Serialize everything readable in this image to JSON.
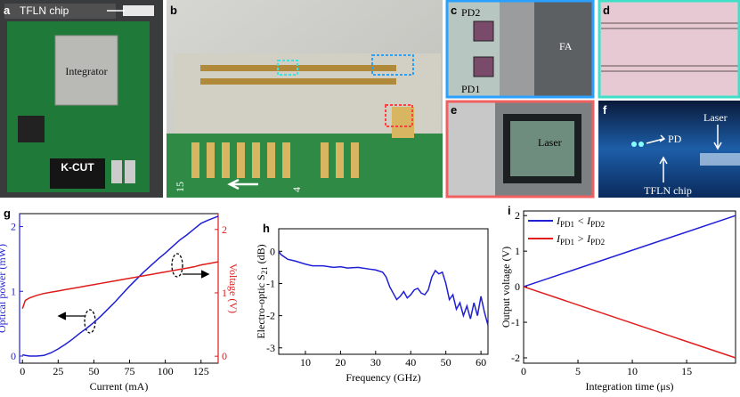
{
  "panels": {
    "a": {
      "label": "a",
      "chip": "TFLN chip",
      "integrator": "Integrator",
      "module": "K-CUT"
    },
    "b": {
      "label": "b",
      "pcb_left": "15",
      "pcb_right": "4"
    },
    "c": {
      "label": "c",
      "pd2": "PD2",
      "pd1": "PD1",
      "fa": "FA"
    },
    "d": {
      "label": "d"
    },
    "e": {
      "label": "e",
      "laser": "Laser"
    },
    "f": {
      "label": "f",
      "pd": "PD",
      "laser": "Laser",
      "chip": "TFLN chip"
    }
  },
  "chart_data": [
    {
      "type": "line",
      "panel_label": "g",
      "xlabel": "Current (mA)",
      "ylabel": "Optical power (mW)",
      "y2label": "Voltage (V)",
      "x": [
        0,
        2,
        5,
        10,
        15,
        20,
        25,
        30,
        35,
        40,
        45,
        50,
        55,
        60,
        65,
        70,
        75,
        80,
        85,
        90,
        95,
        100,
        105,
        110,
        115,
        120,
        125,
        130,
        137
      ],
      "series": [
        {
          "name": "Optical power",
          "color": "#1f1fd6",
          "values": [
            0.02,
            0.01,
            0.0,
            0.0,
            0.01,
            0.05,
            0.11,
            0.18,
            0.26,
            0.35,
            0.43,
            0.52,
            0.62,
            0.73,
            0.84,
            0.96,
            1.08,
            1.19,
            1.3,
            1.4,
            1.5,
            1.59,
            1.69,
            1.79,
            1.87,
            1.96,
            2.05,
            2.1,
            2.16
          ]
        },
        {
          "name": "Voltage",
          "color": "#e01b1b",
          "axis": "y2",
          "values": [
            0.75,
            0.88,
            0.92,
            0.96,
            0.99,
            1.01,
            1.03,
            1.05,
            1.07,
            1.09,
            1.11,
            1.13,
            1.15,
            1.17,
            1.19,
            1.21,
            1.23,
            1.25,
            1.27,
            1.29,
            1.31,
            1.33,
            1.35,
            1.37,
            1.39,
            1.41,
            1.44,
            1.46,
            1.49
          ]
        }
      ],
      "xlim": [
        -2,
        137
      ],
      "xticks": [
        0,
        25,
        50,
        75,
        100,
        125
      ],
      "ylim": [
        -0.11,
        2.2
      ],
      "yticks": [
        0,
        1,
        2
      ],
      "y_color": "#1f1fd6",
      "y2lim": [
        -0.11,
        2.25
      ],
      "y2ticks": [
        0,
        1,
        2
      ],
      "y2_color": "#e01b1b"
    },
    {
      "type": "line",
      "panel_label": "h",
      "xlabel": "Frequency (GHz)",
      "ylabel": [
        "Electro-optic S",
        "21",
        " (dB)"
      ],
      "x": [
        2.4,
        3,
        5,
        7,
        10,
        12,
        15,
        18,
        20,
        22,
        25,
        28,
        30,
        32,
        33,
        34,
        35,
        36,
        37,
        38,
        39,
        40,
        41,
        42,
        43,
        44,
        45,
        46,
        47,
        48,
        49,
        50,
        51,
        52,
        53,
        54,
        55,
        56,
        57,
        58,
        59,
        60,
        61,
        62
      ],
      "series": [
        {
          "name": "S21",
          "color": "#1f1fd6",
          "values": [
            0,
            -0.1,
            -0.25,
            -0.3,
            -0.4,
            -0.45,
            -0.45,
            -0.5,
            -0.48,
            -0.52,
            -0.5,
            -0.55,
            -0.58,
            -0.65,
            -0.8,
            -1.1,
            -1.3,
            -1.5,
            -1.4,
            -1.25,
            -1.45,
            -1.35,
            -1.2,
            -1.15,
            -1.3,
            -1.35,
            -1.2,
            -0.8,
            -0.6,
            -0.7,
            -0.65,
            -1.0,
            -1.5,
            -1.35,
            -1.8,
            -1.6,
            -2.0,
            -1.7,
            -2.1,
            -1.6,
            -2.0,
            -1.4,
            -1.9,
            -2.3
          ]
        }
      ],
      "xlim": [
        2.4,
        62
      ],
      "xticks": [
        10,
        20,
        30,
        40,
        50,
        60
      ],
      "ylim": [
        -3.2,
        0.7
      ],
      "yticks": [
        0,
        -1,
        -2,
        -3
      ]
    },
    {
      "type": "line",
      "panel_label": "i",
      "xlabel": "Integration time (μs)",
      "ylabel": "Output voltage (V)",
      "x": [
        0,
        19.5
      ],
      "series": [
        {
          "name": [
            "I",
            "PD1",
            " < I",
            "PD2"
          ],
          "color": "#1f1fd6",
          "values": [
            0,
            2.0
          ]
        },
        {
          "name": [
            "I",
            "PD1",
            " > I",
            "PD2"
          ],
          "color": "#e01b1b",
          "values": [
            0,
            -2.0
          ]
        }
      ],
      "xlim": [
        0,
        19.5
      ],
      "xticks": [
        0,
        5,
        10,
        15
      ],
      "ylim": [
        -2.15,
        2.13
      ],
      "yticks": [
        -2,
        -1,
        0,
        1,
        2
      ],
      "legend": "upper left"
    }
  ]
}
